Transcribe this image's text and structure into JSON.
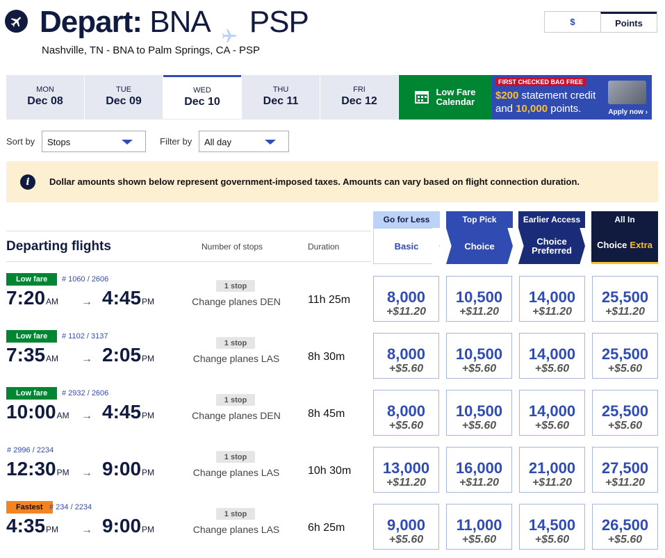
{
  "header": {
    "depart_word": "Depart:",
    "origin": "BNA",
    "destination": "PSP",
    "subtitle": "Nashville, TN - BNA to Palm Springs, CA - PSP"
  },
  "toggle": {
    "dollars": "$",
    "points": "Points"
  },
  "dates": [
    {
      "dow": "MON",
      "day": "Dec 08"
    },
    {
      "dow": "TUE",
      "day": "Dec 09"
    },
    {
      "dow": "WED",
      "day": "Dec 10"
    },
    {
      "dow": "THU",
      "day": "Dec 11"
    },
    {
      "dow": "FRI",
      "day": "Dec 12"
    }
  ],
  "low_fare": {
    "line1": "Low Fare",
    "line2": "Calendar"
  },
  "promo": {
    "tag": "FIRST CHECKED BAG FREE",
    "amount": "$200",
    "text1": " statement credit",
    "and": "and ",
    "points": "10,000",
    "text2": " points.",
    "apply": "Apply now"
  },
  "filters": {
    "sort_label": "Sort by",
    "sort_value": "Stops",
    "filter_label": "Filter by",
    "filter_value": "All day"
  },
  "notice": "Dollar amounts shown below represent government-imposed taxes. Amounts can vary based on flight connection duration.",
  "table": {
    "title": "Departing flights",
    "col_stops": "Number of stops",
    "col_duration": "Duration"
  },
  "fare_types": [
    {
      "top": "Go for Less",
      "name": "Basic",
      "extra": ""
    },
    {
      "top": "Top Pick",
      "name": "Choice",
      "extra": ""
    },
    {
      "top": "Earlier Access",
      "name": "Choice Preferred",
      "extra": ""
    },
    {
      "top": "All In",
      "name": "Choice",
      "extra": "Extra"
    }
  ],
  "flights": [
    {
      "badge": "Low fare",
      "badge_type": "green",
      "number": "# 1060 / 2606",
      "dep": "7:20",
      "dep_ap": "AM",
      "arr": "4:45",
      "arr_ap": "PM",
      "stops": "1 stop",
      "change": "Change planes DEN",
      "duration": "11h 25m",
      "fares": [
        {
          "pts": "8,000",
          "tax": "+$11.20"
        },
        {
          "pts": "10,500",
          "tax": "+$11.20"
        },
        {
          "pts": "14,000",
          "tax": "+$11.20"
        },
        {
          "pts": "25,500",
          "tax": "+$11.20"
        }
      ]
    },
    {
      "badge": "Low fare",
      "badge_type": "green",
      "number": "# 1102 / 3137",
      "dep": "7:35",
      "dep_ap": "AM",
      "arr": "2:05",
      "arr_ap": "PM",
      "stops": "1 stop",
      "change": "Change planes LAS",
      "duration": "8h 30m",
      "fares": [
        {
          "pts": "8,000",
          "tax": "+$5.60"
        },
        {
          "pts": "10,500",
          "tax": "+$5.60"
        },
        {
          "pts": "14,000",
          "tax": "+$5.60"
        },
        {
          "pts": "25,500",
          "tax": "+$5.60"
        }
      ]
    },
    {
      "badge": "Low fare",
      "badge_type": "green",
      "number": "# 2932 / 2606",
      "dep": "10:00",
      "dep_ap": "AM",
      "arr": "4:45",
      "arr_ap": "PM",
      "stops": "1 stop",
      "change": "Change planes DEN",
      "duration": "8h 45m",
      "fares": [
        {
          "pts": "8,000",
          "tax": "+$5.60"
        },
        {
          "pts": "10,500",
          "tax": "+$5.60"
        },
        {
          "pts": "14,000",
          "tax": "+$5.60"
        },
        {
          "pts": "25,500",
          "tax": "+$5.60"
        }
      ]
    },
    {
      "badge": "",
      "badge_type": "",
      "number": "# 2996 / 2234",
      "dep": "12:30",
      "dep_ap": "PM",
      "arr": "9:00",
      "arr_ap": "PM",
      "stops": "1 stop",
      "change": "Change planes LAS",
      "duration": "10h 30m",
      "fares": [
        {
          "pts": "13,000",
          "tax": "+$11.20"
        },
        {
          "pts": "16,000",
          "tax": "+$11.20"
        },
        {
          "pts": "21,000",
          "tax": "+$11.20"
        },
        {
          "pts": "27,500",
          "tax": "+$11.20"
        }
      ]
    },
    {
      "badge": "Fastest",
      "badge_type": "orange",
      "number": "# 234 / 2234",
      "dep": "4:35",
      "dep_ap": "PM",
      "arr": "9:00",
      "arr_ap": "PM",
      "stops": "1 stop",
      "change": "Change planes LAS",
      "duration": "6h 25m",
      "fares": [
        {
          "pts": "9,000",
          "tax": "+$5.60"
        },
        {
          "pts": "11,000",
          "tax": "+$5.60"
        },
        {
          "pts": "14,500",
          "tax": "+$5.60"
        },
        {
          "pts": "26,500",
          "tax": "+$5.60"
        }
      ]
    }
  ],
  "colors": {
    "navy": "#111b40",
    "blue": "#304cb2",
    "green": "#008533",
    "gold": "#ffbf27",
    "orange": "#f5831f"
  }
}
